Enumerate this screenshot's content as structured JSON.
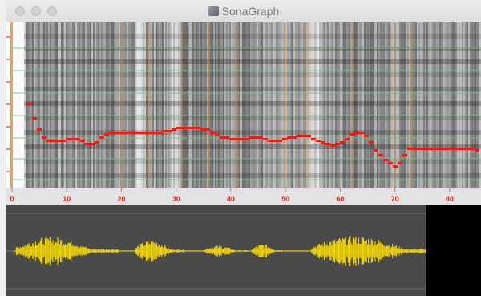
{
  "window": {
    "title": "SonaGraph",
    "app_icon": "sonagraph-app-icon"
  },
  "colors": {
    "pitch": "#e0231a",
    "grid": "#72c47e",
    "marker": "#f0a050",
    "axis_tick": "#e0231a",
    "waveform": "#ffe000",
    "wave_bg": "#4a4a4a"
  },
  "time_axis": {
    "ticks": [
      {
        "value": 0,
        "label": "0"
      },
      {
        "value": 10,
        "label": "10"
      },
      {
        "value": 20,
        "label": "20"
      },
      {
        "value": 30,
        "label": "30"
      },
      {
        "value": 40,
        "label": "40"
      },
      {
        "value": 50,
        "label": "50"
      },
      {
        "value": 60,
        "label": "60"
      },
      {
        "value": 70,
        "label": "70"
      },
      {
        "value": 80,
        "label": "80"
      }
    ],
    "range": [
      0,
      85
    ]
  }
}
